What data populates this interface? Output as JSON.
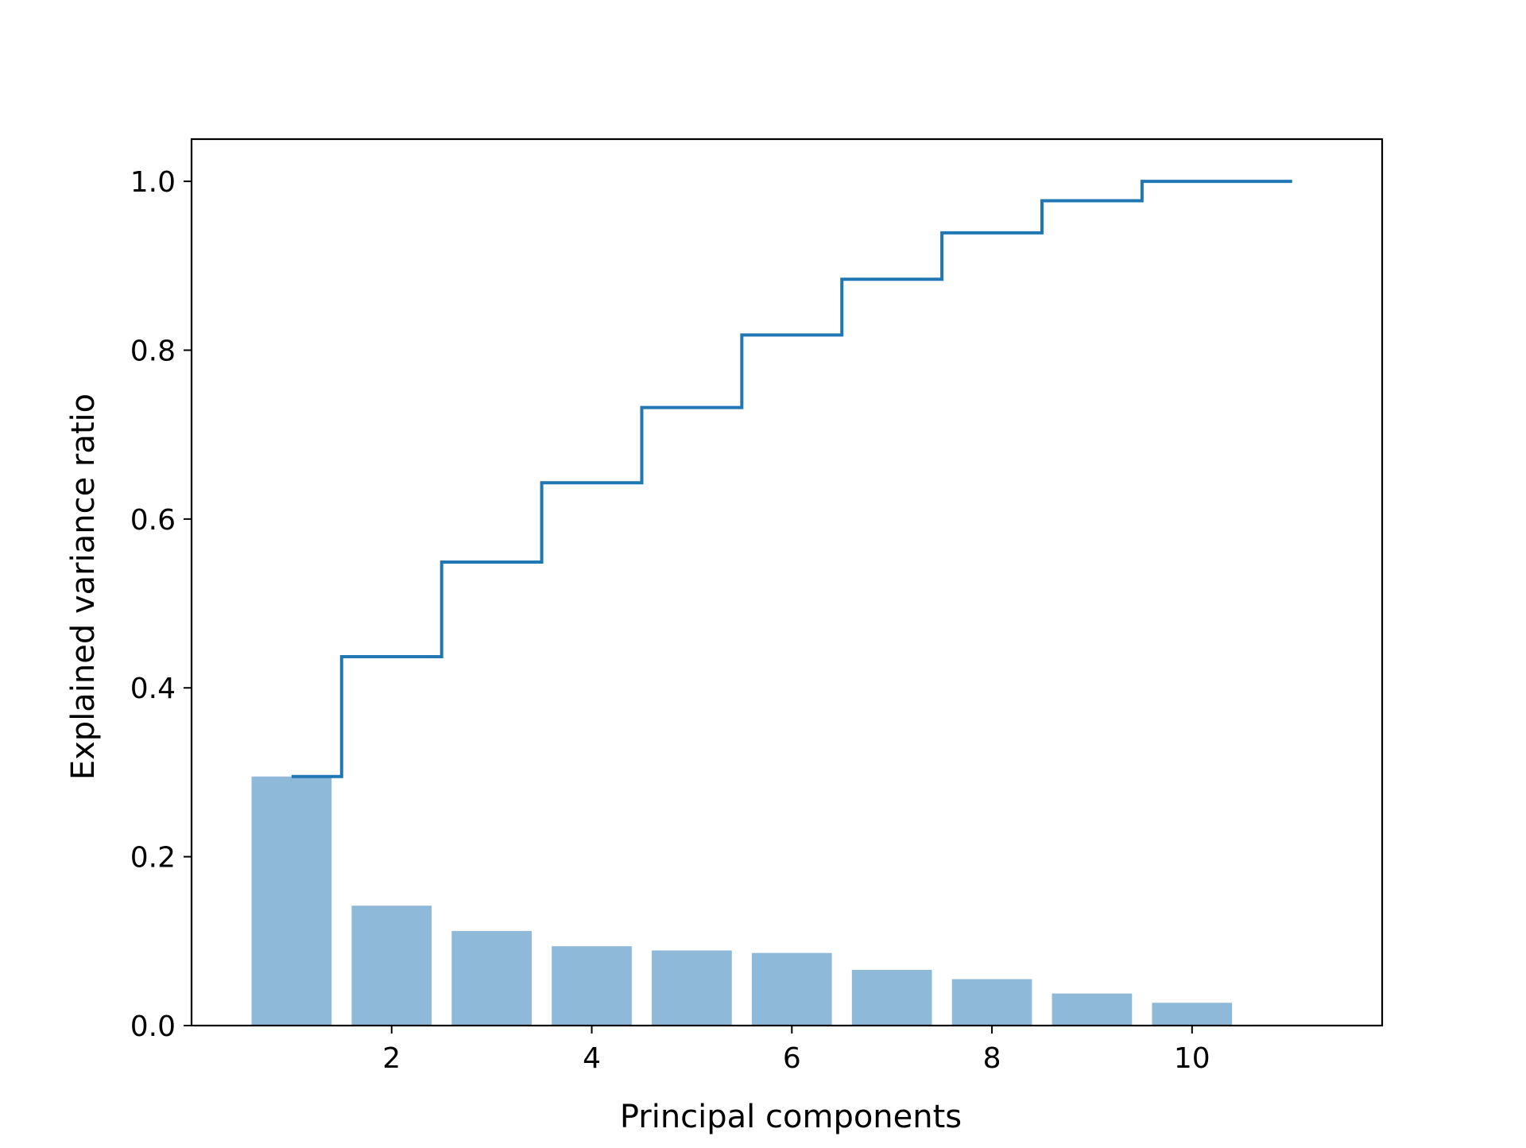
{
  "chart_data": {
    "type": "bar",
    "title": "",
    "xlabel": "Principal components",
    "ylabel": "Explained variance ratio",
    "x": [
      1,
      2,
      3,
      4,
      5,
      6,
      7,
      8,
      9,
      10,
      11
    ],
    "xlim": [
      0.0,
      11.9
    ],
    "ylim": [
      0.0,
      1.05
    ],
    "xticks": [
      2,
      4,
      6,
      8,
      10
    ],
    "xtick_labels": [
      "2",
      "4",
      "6",
      "8",
      "10"
    ],
    "yticks": [
      0.0,
      0.2,
      0.4,
      0.6,
      0.8,
      1.0
    ],
    "ytick_labels": [
      "0.0",
      "0.2",
      "0.4",
      "0.6",
      "0.8",
      "1.0"
    ],
    "grid": false,
    "series": [
      {
        "kind": "bar",
        "values": [
          0.295,
          0.142,
          0.112,
          0.094,
          0.089,
          0.086,
          0.066,
          0.055,
          0.038,
          0.027,
          0.001
        ],
        "color": "#8fb9d9"
      },
      {
        "kind": "step",
        "where": "mid",
        "values": [
          0.295,
          0.437,
          0.549,
          0.643,
          0.732,
          0.818,
          0.884,
          0.939,
          0.977,
          1.0,
          1.0
        ],
        "color": "#1f77b4"
      }
    ]
  }
}
